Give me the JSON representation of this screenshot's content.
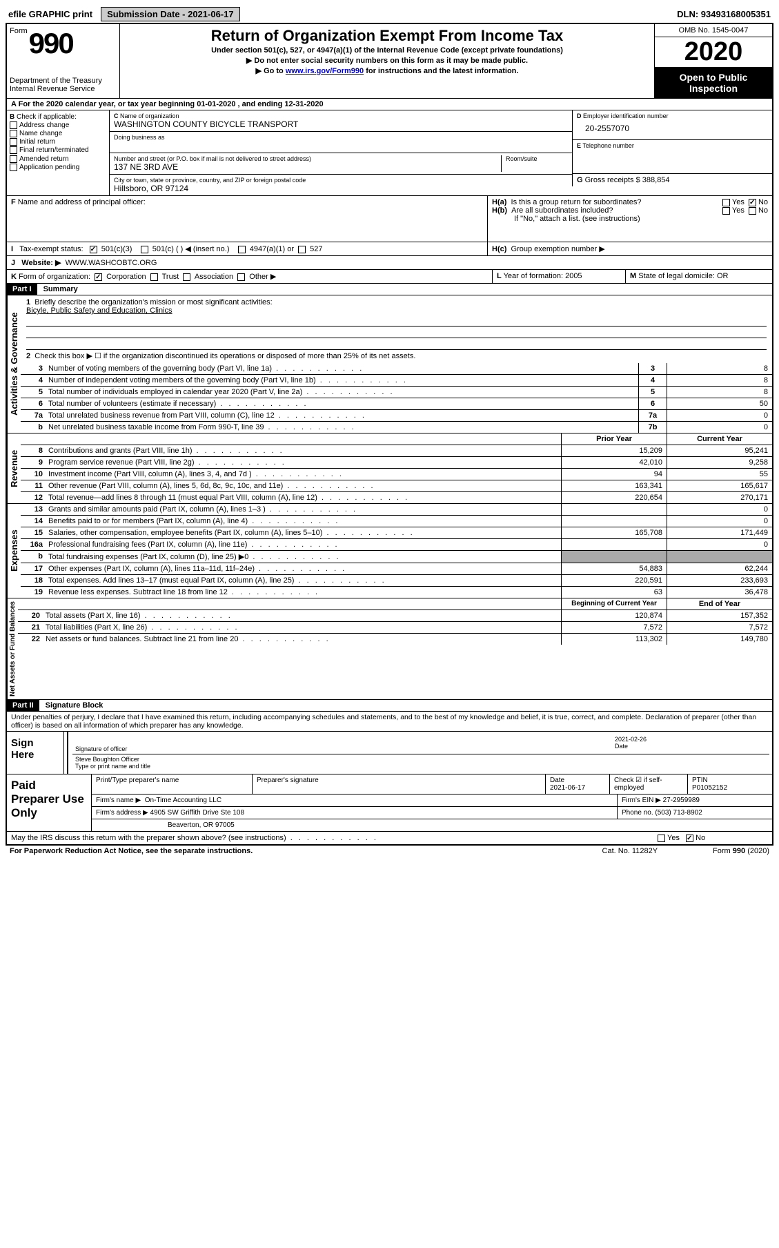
{
  "topbar": {
    "efile": "efile GRAPHIC print",
    "submission_label": "Submission Date - 2021-06-17",
    "dln_label": "DLN: 93493168005351"
  },
  "header": {
    "form_word": "Form",
    "form_num": "990",
    "dept": "Department of the Treasury Internal Revenue Service",
    "title": "Return of Organization Exempt From Income Tax",
    "sub1": "Under section 501(c), 527, or 4947(a)(1) of the Internal Revenue Code (except private foundations)",
    "sub2": "Do not enter social security numbers on this form as it may be made public.",
    "sub3_pre": "Go to ",
    "sub3_link": "www.irs.gov/Form990",
    "sub3_post": " for instructions and the latest information.",
    "omb": "OMB No. 1545-0047",
    "year": "2020",
    "inspection": "Open to Public Inspection"
  },
  "rowA": "For the 2020 calendar year, or tax year beginning 01-01-2020   , and ending 12-31-2020",
  "boxB": {
    "label": "Check if applicable:",
    "items": [
      "Address change",
      "Name change",
      "Initial return",
      "Final return/terminated",
      "Amended return",
      "Application pending"
    ]
  },
  "boxC": {
    "label": "Name of organization",
    "value": "WASHINGTON COUNTY BICYCLE TRANSPORT",
    "dba_label": "Doing business as",
    "addr_label": "Number and street (or P.O. box if mail is not delivered to street address)",
    "room_label": "Room/suite",
    "addr": "137 NE 3RD AVE",
    "city_label": "City or town, state or province, country, and ZIP or foreign postal code",
    "city": "Hillsboro, OR  97124"
  },
  "boxD": {
    "label": "Employer identification number",
    "value": "20-2557070"
  },
  "boxE": {
    "label": "Telephone number",
    "value": ""
  },
  "boxG": {
    "label": "Gross receipts $",
    "value": "388,854"
  },
  "boxF": {
    "label": "Name and address of principal officer:",
    "value": ""
  },
  "boxH": {
    "a": "Is this a group return for subordinates?",
    "b": "Are all subordinates included?",
    "note": "If \"No,\" attach a list. (see instructions)",
    "c": "Group exemption number ▶"
  },
  "boxI": {
    "label": "Tax-exempt status:",
    "opts": [
      "501(c)(3)",
      "501(c) (  ) ◀ (insert no.)",
      "4947(a)(1) or",
      "527"
    ]
  },
  "boxJ": {
    "label": "Website: ▶",
    "value": "WWW.WASHCOBTC.ORG"
  },
  "boxK": {
    "label": "Form of organization:",
    "opts": [
      "Corporation",
      "Trust",
      "Association",
      "Other ▶"
    ]
  },
  "boxL": {
    "label": "Year of formation:",
    "value": "2005"
  },
  "boxM": {
    "label": "State of legal domicile:",
    "value": "OR"
  },
  "parts": {
    "p1": {
      "num": "Part I",
      "title": "Summary"
    },
    "p2": {
      "num": "Part II",
      "title": "Signature Block"
    }
  },
  "summary": {
    "l1_label": "Briefly describe the organization's mission or most significant activities:",
    "l1_val": "Bicyle, Public Safety and Education, Clinics",
    "l2": "Check this box ▶ ☐ if the organization discontinued its operations or disposed of more than 25% of its net assets.",
    "gov_label": "Activities & Governance",
    "rev_label": "Revenue",
    "exp_label": "Expenses",
    "net_label": "Net Assets or Fund Balances",
    "rows_gov": [
      {
        "n": "3",
        "t": "Number of voting members of the governing body (Part VI, line 1a)",
        "b": "3",
        "v": "8"
      },
      {
        "n": "4",
        "t": "Number of independent voting members of the governing body (Part VI, line 1b)",
        "b": "4",
        "v": "8"
      },
      {
        "n": "5",
        "t": "Total number of individuals employed in calendar year 2020 (Part V, line 2a)",
        "b": "5",
        "v": "8"
      },
      {
        "n": "6",
        "t": "Total number of volunteers (estimate if necessary)",
        "b": "6",
        "v": "50"
      },
      {
        "n": "7a",
        "t": "Total unrelated business revenue from Part VIII, column (C), line 12",
        "b": "7a",
        "v": "0"
      },
      {
        "n": "b",
        "t": "Net unrelated business taxable income from Form 990-T, line 39",
        "b": "7b",
        "v": "0"
      }
    ],
    "col_hdr_prior": "Prior Year",
    "col_hdr_curr": "Current Year",
    "rows_rev": [
      {
        "n": "8",
        "t": "Contributions and grants (Part VIII, line 1h)",
        "p": "15,209",
        "c": "95,241"
      },
      {
        "n": "9",
        "t": "Program service revenue (Part VIII, line 2g)",
        "p": "42,010",
        "c": "9,258"
      },
      {
        "n": "10",
        "t": "Investment income (Part VIII, column (A), lines 3, 4, and 7d )",
        "p": "94",
        "c": "55"
      },
      {
        "n": "11",
        "t": "Other revenue (Part VIII, column (A), lines 5, 6d, 8c, 9c, 10c, and 11e)",
        "p": "163,341",
        "c": "165,617"
      },
      {
        "n": "12",
        "t": "Total revenue—add lines 8 through 11 (must equal Part VIII, column (A), line 12)",
        "p": "220,654",
        "c": "270,171"
      }
    ],
    "rows_exp": [
      {
        "n": "13",
        "t": "Grants and similar amounts paid (Part IX, column (A), lines 1–3 )",
        "p": "",
        "c": "0"
      },
      {
        "n": "14",
        "t": "Benefits paid to or for members (Part IX, column (A), line 4)",
        "p": "",
        "c": "0"
      },
      {
        "n": "15",
        "t": "Salaries, other compensation, employee benefits (Part IX, column (A), lines 5–10)",
        "p": "165,708",
        "c": "171,449"
      },
      {
        "n": "16a",
        "t": "Professional fundraising fees (Part IX, column (A), line 11e)",
        "p": "",
        "c": "0"
      },
      {
        "n": "b",
        "t": "Total fundraising expenses (Part IX, column (D), line 25) ▶0",
        "p": "grey",
        "c": "grey"
      },
      {
        "n": "17",
        "t": "Other expenses (Part IX, column (A), lines 11a–11d, 11f–24e)",
        "p": "54,883",
        "c": "62,244"
      },
      {
        "n": "18",
        "t": "Total expenses. Add lines 13–17 (must equal Part IX, column (A), line 25)",
        "p": "220,591",
        "c": "233,693"
      },
      {
        "n": "19",
        "t": "Revenue less expenses. Subtract line 18 from line 12",
        "p": "63",
        "c": "36,478"
      }
    ],
    "col_hdr_begin": "Beginning of Current Year",
    "col_hdr_end": "End of Year",
    "rows_net": [
      {
        "n": "20",
        "t": "Total assets (Part X, line 16)",
        "p": "120,874",
        "c": "157,352"
      },
      {
        "n": "21",
        "t": "Total liabilities (Part X, line 26)",
        "p": "7,572",
        "c": "7,572"
      },
      {
        "n": "22",
        "t": "Net assets or fund balances. Subtract line 21 from line 20",
        "p": "113,302",
        "c": "149,780"
      }
    ]
  },
  "sig": {
    "declaration": "Under penalties of perjury, I declare that I have examined this return, including accompanying schedules and statements, and to the best of my knowledge and belief, it is true, correct, and complete. Declaration of preparer (other than officer) is based on all information of which preparer has any knowledge.",
    "sign_here": "Sign Here",
    "sig_officer": "Signature of officer",
    "date_label": "Date",
    "date_val": "2021-02-26",
    "name": "Steve Boughton Officer",
    "name_sub": "Type or print name and title"
  },
  "prep": {
    "title": "Paid Preparer Use Only",
    "col1": "Print/Type preparer's name",
    "col2": "Preparer's signature",
    "col3_label": "Date",
    "col3_val": "2021-06-17",
    "col4": "Check ☑ if self-employed",
    "col5_label": "PTIN",
    "col5_val": "P01052152",
    "firm_label": "Firm's name    ▶",
    "firm_val": "On-Time Accounting LLC",
    "ein_label": "Firm's EIN ▶",
    "ein_val": "27-2959989",
    "addr_label": "Firm's address ▶",
    "addr_val1": "4905 SW Griffith Drive Ste 108",
    "addr_val2": "Beaverton, OR  97005",
    "phone_label": "Phone no.",
    "phone_val": "(503) 713-8902"
  },
  "footer": {
    "discuss": "May the IRS discuss this return with the preparer shown above? (see instructions)",
    "paperwork": "For Paperwork Reduction Act Notice, see the separate instructions.",
    "cat": "Cat. No. 11282Y",
    "form": "Form 990 (2020)"
  }
}
